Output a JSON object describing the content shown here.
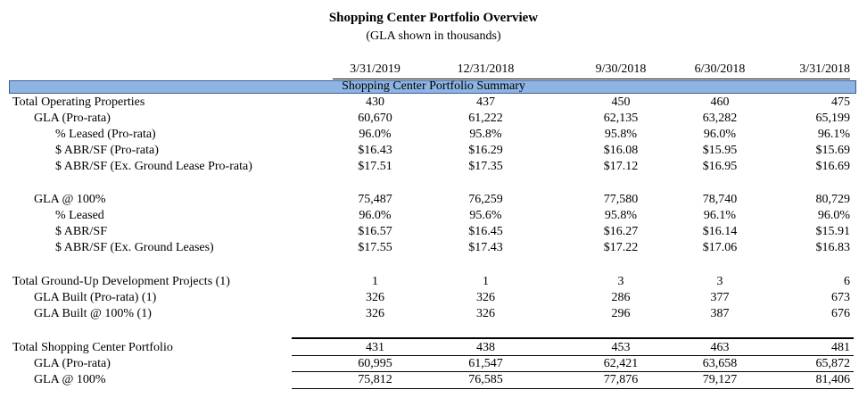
{
  "title": "Shopping Center Portfolio Overview",
  "subtitle": "(GLA shown in thousands)",
  "columns": [
    "3/31/2019",
    "12/31/2018",
    "9/30/2018",
    "6/30/2018",
    "3/31/2018"
  ],
  "section_header": "Shopping Center Portfolio Summary",
  "rows": [
    {
      "label": "Total Operating Properties",
      "values": [
        "430",
        "437",
        "450",
        "460",
        "475"
      ]
    },
    {
      "label": "GLA (Pro-rata)",
      "values": [
        "60,670",
        "61,222",
        "62,135",
        "63,282",
        "65,199"
      ]
    },
    {
      "label": "% Leased (Pro-rata)",
      "values": [
        "96.0%",
        "95.8%",
        "95.8%",
        "96.0%",
        "96.1%"
      ]
    },
    {
      "label": "$ ABR/SF (Pro-rata)",
      "values": [
        "$16.43",
        "$16.29",
        "$16.08",
        "$15.95",
        "$15.69"
      ]
    },
    {
      "label": "$ ABR/SF (Ex. Ground Lease Pro-rata)",
      "values": [
        "$17.51",
        "$17.35",
        "$17.12",
        "$16.95",
        "$16.69"
      ]
    },
    {
      "label": "GLA @ 100%",
      "values": [
        "75,487",
        "76,259",
        "77,580",
        "78,740",
        "80,729"
      ]
    },
    {
      "label": "% Leased",
      "values": [
        "96.0%",
        "95.6%",
        "95.8%",
        "96.1%",
        "96.0%"
      ]
    },
    {
      "label": "$ ABR/SF",
      "values": [
        "$16.57",
        "$16.45",
        "$16.27",
        "$16.14",
        "$15.91"
      ]
    },
    {
      "label": "$ ABR/SF (Ex. Ground Leases)",
      "values": [
        "$17.55",
        "$17.43",
        "$17.22",
        "$17.06",
        "$16.83"
      ]
    },
    {
      "label": "Total Ground-Up Development Projects (1)",
      "values": [
        "1",
        "1",
        "3",
        "3",
        "6"
      ]
    },
    {
      "label": "GLA Built (Pro-rata) (1)",
      "values": [
        "326",
        "326",
        "286",
        "377",
        "673"
      ]
    },
    {
      "label": "GLA Built @ 100% (1)",
      "values": [
        "326",
        "326",
        "296",
        "387",
        "676"
      ]
    },
    {
      "label": "Total Shopping Center Portfolio",
      "values": [
        "431",
        "438",
        "453",
        "463",
        "481"
      ]
    },
    {
      "label": "GLA (Pro-rata)",
      "values": [
        "60,995",
        "61,547",
        "62,421",
        "63,658",
        "65,872"
      ]
    },
    {
      "label": "GLA @ 100%",
      "values": [
        "75,812",
        "76,585",
        "77,876",
        "79,127",
        "81,406"
      ]
    }
  ]
}
